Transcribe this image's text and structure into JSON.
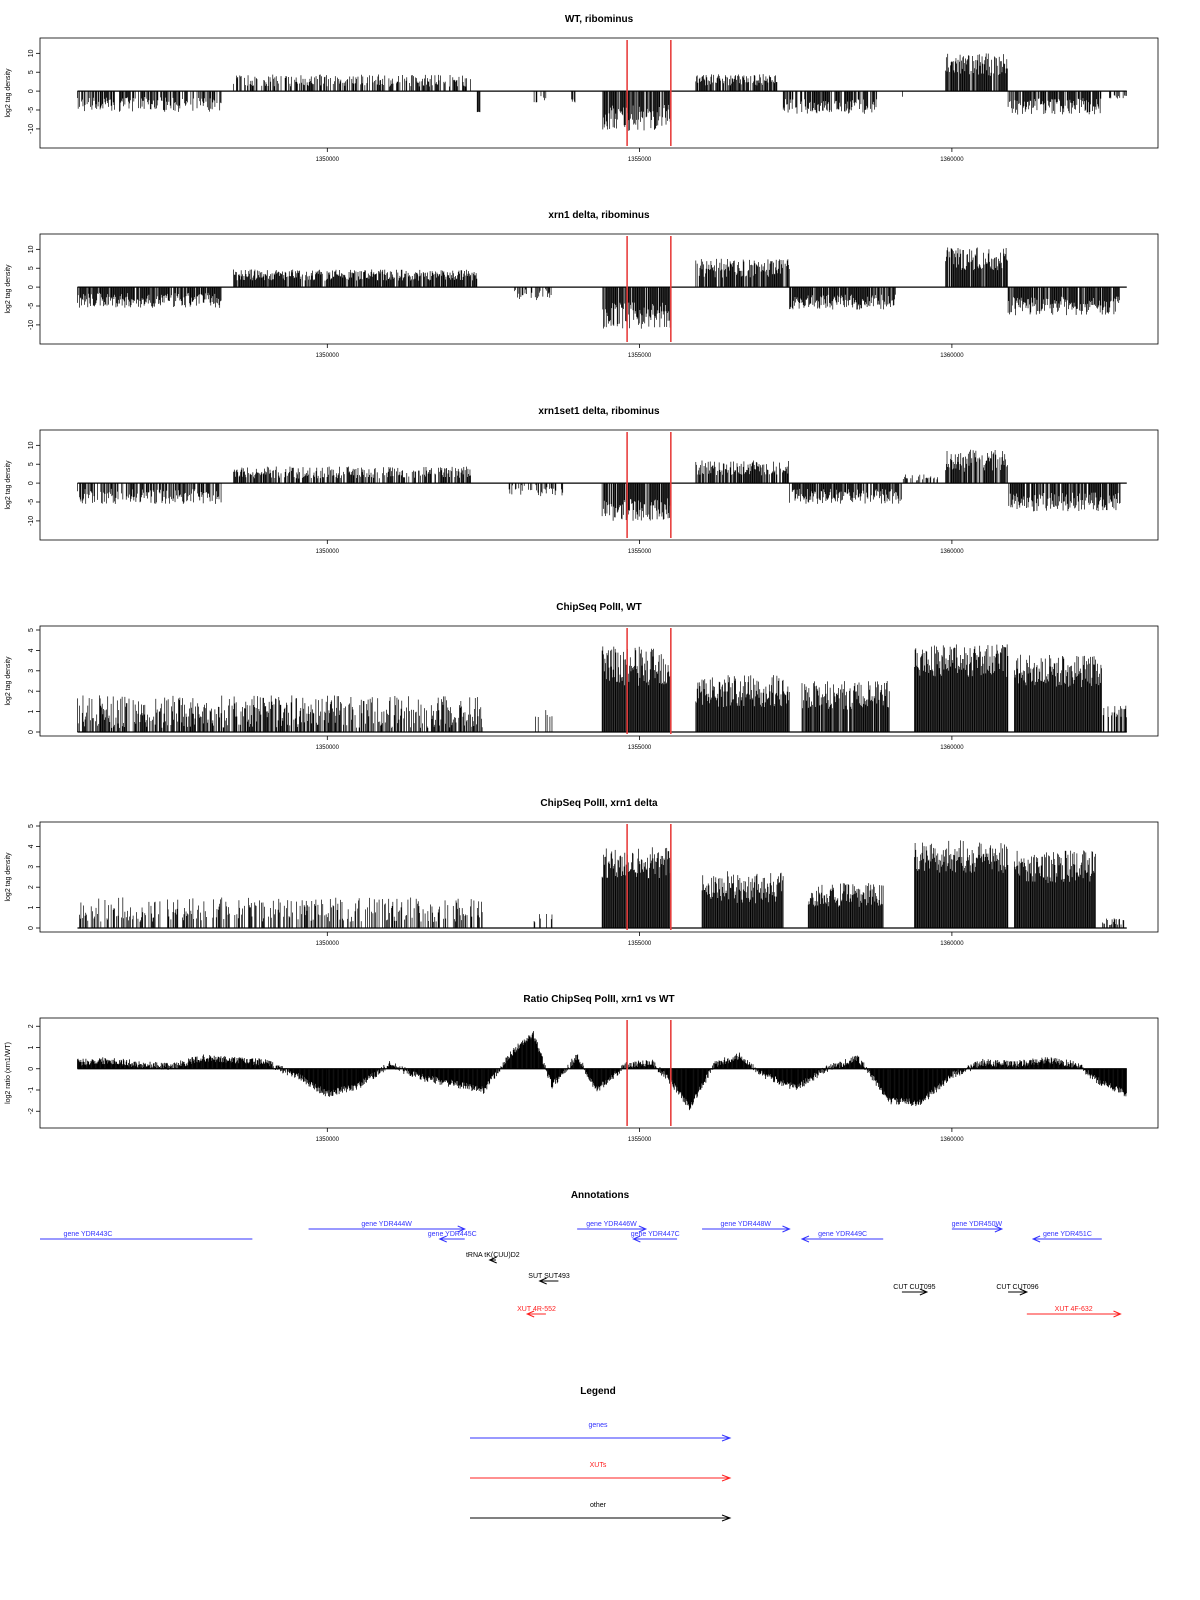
{
  "chart_data": [
    {
      "type": "bar",
      "title": "WT, ribominus",
      "ylabel": "log2 tag density",
      "xlim": [
        1345400,
        1363300
      ],
      "ylim": [
        -14,
        13
      ],
      "yticks": [
        -10,
        -5,
        0,
        5,
        10
      ],
      "ytick_labels": [
        "-10",
        "-5",
        "0",
        "5",
        "10"
      ],
      "xticks": [
        1350000,
        1355000,
        1360000
      ],
      "xtick_labels": [
        "1350000",
        "1355000",
        "1360000"
      ],
      "markers": [
        1354800,
        1355500
      ],
      "marker_color": "#e8403f",
      "baseline": 0,
      "segments": [
        {
          "x": [
            1346000,
            1348300
          ],
          "value": -3.5,
          "jitter": 2.0,
          "density": 0.7
        },
        {
          "x": [
            1348500,
            1352300
          ],
          "value": 2.8,
          "jitter": 1.6,
          "density": 0.6
        },
        {
          "x": [
            1352400,
            1352450
          ],
          "value": -5.5,
          "jitter": 0.2,
          "density": 1.0
        },
        {
          "x": [
            1353300,
            1353500
          ],
          "value": -2,
          "jitter": 1.0,
          "density": 0.3
        },
        {
          "x": [
            1353900,
            1354000
          ],
          "value": -3,
          "jitter": 1.0,
          "density": 0.4
        },
        {
          "x": [
            1354400,
            1355500
          ],
          "value": -7,
          "jitter": 3.5,
          "density": 0.9
        },
        {
          "x": [
            1355900,
            1357200
          ],
          "value": 3,
          "jitter": 1.5,
          "density": 0.8
        },
        {
          "x": [
            1357300,
            1358800
          ],
          "value": -4,
          "jitter": 2.0,
          "density": 0.8
        },
        {
          "x": [
            1359200,
            1359250
          ],
          "value": -1.5,
          "jitter": 0.5,
          "density": 0.3
        },
        {
          "x": [
            1359900,
            1360900
          ],
          "value": 7,
          "jitter": 3.0,
          "density": 0.9
        },
        {
          "x": [
            1360900,
            1362400
          ],
          "value": -4,
          "jitter": 2.2,
          "density": 0.8
        },
        {
          "x": [
            1362500,
            1362800
          ],
          "value": -1.5,
          "jitter": 0.5,
          "density": 0.3
        }
      ]
    },
    {
      "type": "bar",
      "title": "xrn1 delta, ribominus",
      "ylabel": "log2 tag density",
      "xlim": [
        1345400,
        1363300
      ],
      "ylim": [
        -14,
        13
      ],
      "yticks": [
        -10,
        -5,
        0,
        5,
        10
      ],
      "ytick_labels": [
        "-10",
        "-5",
        "0",
        "5",
        "10"
      ],
      "xticks": [
        1350000,
        1355000,
        1360000
      ],
      "xtick_labels": [
        "1350000",
        "1355000",
        "1360000"
      ],
      "markers": [
        1354800,
        1355500
      ],
      "marker_color": "#e8403f",
      "baseline": 0,
      "segments": [
        {
          "x": [
            1346000,
            1348300
          ],
          "value": -3.5,
          "jitter": 2.0,
          "density": 0.9
        },
        {
          "x": [
            1348500,
            1352400
          ],
          "value": 3.2,
          "jitter": 1.5,
          "density": 0.9
        },
        {
          "x": [
            1353000,
            1353600
          ],
          "value": -2,
          "jitter": 1.5,
          "density": 0.5
        },
        {
          "x": [
            1354400,
            1355500
          ],
          "value": -7.5,
          "jitter": 3.5,
          "density": 0.9
        },
        {
          "x": [
            1355900,
            1357400
          ],
          "value": 5,
          "jitter": 2.5,
          "density": 0.9
        },
        {
          "x": [
            1357400,
            1359100
          ],
          "value": -4,
          "jitter": 2.0,
          "density": 0.9
        },
        {
          "x": [
            1359900,
            1360900
          ],
          "value": 7.5,
          "jitter": 3.0,
          "density": 0.9
        },
        {
          "x": [
            1360900,
            1362700
          ],
          "value": -5,
          "jitter": 2.5,
          "density": 0.9
        }
      ]
    },
    {
      "type": "bar",
      "title": "xrn1set1 delta, ribominus",
      "ylabel": "log2 tag density",
      "xlim": [
        1345400,
        1363300
      ],
      "ylim": [
        -14,
        13
      ],
      "yticks": [
        -10,
        -5,
        0,
        5,
        10
      ],
      "ytick_labels": [
        "-10",
        "-5",
        "0",
        "5",
        "10"
      ],
      "xticks": [
        1350000,
        1355000,
        1360000
      ],
      "xtick_labels": [
        "1350000",
        "1355000",
        "1360000"
      ],
      "markers": [
        1354800,
        1355500
      ],
      "marker_color": "#e8403f",
      "baseline": 0,
      "segments": [
        {
          "x": [
            1346000,
            1348300
          ],
          "value": -3.5,
          "jitter": 2.0,
          "density": 0.7
        },
        {
          "x": [
            1348500,
            1352300
          ],
          "value": 2.8,
          "jitter": 1.6,
          "density": 0.7
        },
        {
          "x": [
            1352900,
            1353800
          ],
          "value": -2,
          "jitter": 1.5,
          "density": 0.4
        },
        {
          "x": [
            1354400,
            1355500
          ],
          "value": -7,
          "jitter": 3.0,
          "density": 0.9
        },
        {
          "x": [
            1355900,
            1357400
          ],
          "value": 4,
          "jitter": 2.0,
          "density": 0.8
        },
        {
          "x": [
            1357400,
            1359200
          ],
          "value": -3.5,
          "jitter": 2.0,
          "density": 0.8
        },
        {
          "x": [
            1359200,
            1359800
          ],
          "value": 1.5,
          "jitter": 0.8,
          "density": 0.4
        },
        {
          "x": [
            1359900,
            1360900
          ],
          "value": 6,
          "jitter": 3.0,
          "density": 0.8
        },
        {
          "x": [
            1360900,
            1362700
          ],
          "value": -5,
          "jitter": 2.5,
          "density": 0.8
        }
      ]
    },
    {
      "type": "bar",
      "title": "ChipSeq PolII, WT",
      "ylabel": "log2 tag density",
      "xlim": [
        1345400,
        1363300
      ],
      "ylim": [
        0,
        5
      ],
      "yticks": [
        0,
        1,
        2,
        3,
        4,
        5
      ],
      "ytick_labels": [
        "0",
        "1",
        "2",
        "3",
        "4",
        "5"
      ],
      "xticks": [
        1350000,
        1355000,
        1360000
      ],
      "xtick_labels": [
        "1350000",
        "1355000",
        "1360000"
      ],
      "markers": [
        1354800,
        1355500
      ],
      "marker_color": "#e8403f",
      "baseline": 0,
      "segments": [
        {
          "x": [
            1346000,
            1352500
          ],
          "value": 1.0,
          "jitter": 0.8,
          "density": 0.7
        },
        {
          "x": [
            1353300,
            1353600
          ],
          "value": 1.0,
          "jitter": 0.3,
          "density": 0.4
        },
        {
          "x": [
            1354400,
            1355500
          ],
          "value": 3.2,
          "jitter": 1.0,
          "density": 1.0
        },
        {
          "x": [
            1355900,
            1357400
          ],
          "value": 2.0,
          "jitter": 0.8,
          "density": 1.0
        },
        {
          "x": [
            1357600,
            1359000
          ],
          "value": 1.8,
          "jitter": 0.7,
          "density": 0.9
        },
        {
          "x": [
            1359400,
            1360900
          ],
          "value": 3.5,
          "jitter": 0.8,
          "density": 1.0
        },
        {
          "x": [
            1361000,
            1362400
          ],
          "value": 3.0,
          "jitter": 0.8,
          "density": 1.0
        },
        {
          "x": [
            1362400,
            1362800
          ],
          "value": 1.0,
          "jitter": 0.3,
          "density": 0.5
        }
      ]
    },
    {
      "type": "bar",
      "title": "ChipSeq PolII, xrn1 delta",
      "ylabel": "log2 tag density",
      "xlim": [
        1345400,
        1363300
      ],
      "ylim": [
        0,
        5
      ],
      "yticks": [
        0,
        1,
        2,
        3,
        4,
        5
      ],
      "ytick_labels": [
        "0",
        "1",
        "2",
        "3",
        "4",
        "5"
      ],
      "xticks": [
        1350000,
        1355000,
        1360000
      ],
      "xtick_labels": [
        "1350000",
        "1355000",
        "1360000"
      ],
      "markers": [
        1354800,
        1355500
      ],
      "marker_color": "#e8403f",
      "baseline": 0,
      "segments": [
        {
          "x": [
            1346000,
            1352500
          ],
          "value": 0.9,
          "jitter": 0.6,
          "density": 0.5
        },
        {
          "x": [
            1353300,
            1353600
          ],
          "value": 0.5,
          "jitter": 0.3,
          "density": 0.3
        },
        {
          "x": [
            1354400,
            1355500
          ],
          "value": 3.2,
          "jitter": 0.8,
          "density": 1.0
        },
        {
          "x": [
            1356000,
            1357300
          ],
          "value": 2.0,
          "jitter": 0.8,
          "density": 1.0
        },
        {
          "x": [
            1357700,
            1358900
          ],
          "value": 1.6,
          "jitter": 0.6,
          "density": 1.0
        },
        {
          "x": [
            1359400,
            1360900
          ],
          "value": 3.5,
          "jitter": 0.8,
          "density": 1.0
        },
        {
          "x": [
            1361000,
            1362300
          ],
          "value": 3.0,
          "jitter": 0.8,
          "density": 1.0
        },
        {
          "x": [
            1362400,
            1362800
          ],
          "value": 0.3,
          "jitter": 0.2,
          "density": 0.4
        }
      ]
    },
    {
      "type": "area",
      "title": "Ratio ChipSeq PolII, xrn1 vs WT",
      "ylabel": "log2 ratio (xrn1/WT)",
      "xlim": [
        1345400,
        1363300
      ],
      "ylim": [
        -2.6,
        2.2
      ],
      "yticks": [
        -2,
        -1,
        0,
        1,
        2
      ],
      "ytick_labels": [
        "-2",
        "-1",
        "0",
        "1",
        "2"
      ],
      "xticks": [
        1350000,
        1355000,
        1360000
      ],
      "xtick_labels": [
        "1350000",
        "1355000",
        "1360000"
      ],
      "markers": [
        1354800,
        1355500
      ],
      "marker_color": "#e8403f",
      "baseline": 0,
      "profile": [
        [
          1346000,
          0.3
        ],
        [
          1346500,
          0.4
        ],
        [
          1347000,
          0.2
        ],
        [
          1347500,
          0.1
        ],
        [
          1348000,
          0.5
        ],
        [
          1348500,
          0.4
        ],
        [
          1349000,
          0.3
        ],
        [
          1349500,
          -0.3
        ],
        [
          1350000,
          -1.2
        ],
        [
          1350500,
          -0.8
        ],
        [
          1351000,
          0.2
        ],
        [
          1351500,
          -0.4
        ],
        [
          1352000,
          -0.7
        ],
        [
          1352500,
          -1.0
        ],
        [
          1353000,
          0.9
        ],
        [
          1353300,
          1.6
        ],
        [
          1353600,
          -0.8
        ],
        [
          1354000,
          0.6
        ],
        [
          1354300,
          -1.0
        ],
        [
          1354800,
          0.2
        ],
        [
          1355200,
          0.3
        ],
        [
          1355500,
          -0.6
        ],
        [
          1355800,
          -1.8
        ],
        [
          1356200,
          0.2
        ],
        [
          1356600,
          0.6
        ],
        [
          1357000,
          -0.3
        ],
        [
          1357500,
          -0.9
        ],
        [
          1358000,
          0.0
        ],
        [
          1358500,
          0.5
        ],
        [
          1359000,
          -1.5
        ],
        [
          1359500,
          -1.6
        ],
        [
          1360000,
          -0.3
        ],
        [
          1360500,
          0.3
        ],
        [
          1361000,
          0.2
        ],
        [
          1361500,
          0.4
        ],
        [
          1362000,
          0.2
        ],
        [
          1362300,
          -0.5
        ],
        [
          1362800,
          -1.2
        ]
      ]
    }
  ],
  "annotations": {
    "title": "Annotations",
    "xlim": [
      1345400,
      1363300
    ],
    "features": [
      {
        "label": "gene YDR443C",
        "x": [
          1345400,
          1348800
        ],
        "dir": "none",
        "row": 0,
        "kind": "gene"
      },
      {
        "label": "gene YDR444W",
        "x": [
          1349700,
          1352200
        ],
        "dir": "right",
        "row": -1,
        "kind": "gene"
      },
      {
        "label": "gene YDR445C",
        "x": [
          1351800,
          1352200
        ],
        "dir": "left",
        "row": 0,
        "kind": "gene"
      },
      {
        "label": "tRNA tK(CUU)D2",
        "x": [
          1352600,
          1352700
        ],
        "dir": "left",
        "row": 1,
        "kind": "other"
      },
      {
        "label": "SUT SUT493",
        "x": [
          1353400,
          1353700
        ],
        "dir": "left",
        "row": 2,
        "kind": "other"
      },
      {
        "label": "XUT 4R-552",
        "x": [
          1353200,
          1353500
        ],
        "dir": "left",
        "row": 4,
        "kind": "xut"
      },
      {
        "label": "gene YDR446W",
        "x": [
          1354000,
          1355100
        ],
        "dir": "right",
        "row": -1,
        "kind": "gene"
      },
      {
        "label": "gene YDR447C",
        "x": [
          1354900,
          1355600
        ],
        "dir": "left",
        "row": 0,
        "kind": "gene"
      },
      {
        "label": "gene YDR448W",
        "x": [
          1356000,
          1357400
        ],
        "dir": "right",
        "row": -1,
        "kind": "gene"
      },
      {
        "label": "gene YDR449C",
        "x": [
          1357600,
          1358900
        ],
        "dir": "left",
        "row": 0,
        "kind": "gene"
      },
      {
        "label": "CUT CUT095",
        "x": [
          1359200,
          1359600
        ],
        "dir": "right",
        "row": 3,
        "kind": "other"
      },
      {
        "label": "gene YDR450W",
        "x": [
          1360000,
          1360800
        ],
        "dir": "right",
        "row": -1,
        "kind": "gene"
      },
      {
        "label": "CUT CUT096",
        "x": [
          1360900,
          1361200
        ],
        "dir": "right",
        "row": 3,
        "kind": "other"
      },
      {
        "label": "gene YDR451C",
        "x": [
          1361300,
          1362400
        ],
        "dir": "left",
        "row": 0,
        "kind": "gene"
      },
      {
        "label": "XUT 4F-632",
        "x": [
          1361200,
          1362700
        ],
        "dir": "right",
        "row": 4,
        "kind": "xut"
      }
    ]
  },
  "legend": {
    "title": "Legend",
    "items": [
      {
        "label": "genes",
        "kind": "gene"
      },
      {
        "label": "XUTs",
        "kind": "xut"
      },
      {
        "label": "other",
        "kind": "other"
      }
    ]
  },
  "colors": {
    "gene": "#3333ff",
    "xut": "#ff2020",
    "other": "#000000",
    "marker": "#e8403f"
  }
}
